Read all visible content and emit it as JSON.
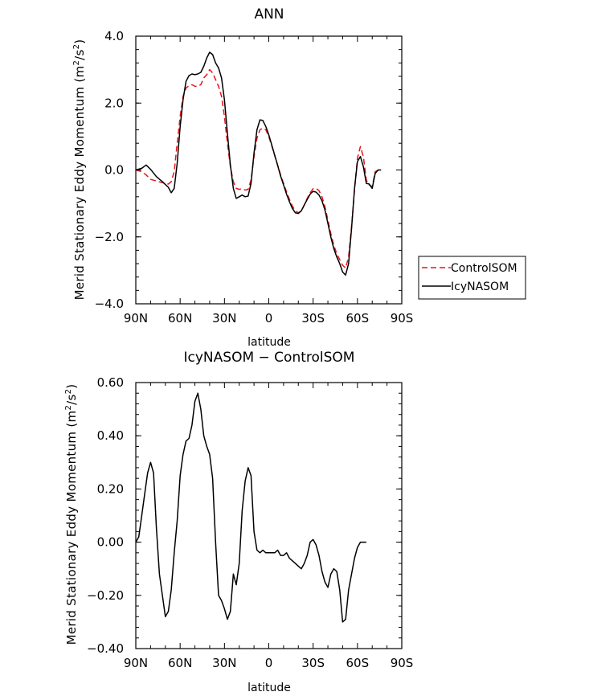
{
  "chart_data": [
    {
      "type": "line",
      "title": "ANN",
      "xlabel": "latitude",
      "ylabel": "Merid Stationary Eddy Momentum (m²/s²)",
      "ylabel_main": "Merid Stationary Eddy Momentum (m",
      "ylabel_sup1": "2",
      "ylabel_mid": "/s",
      "ylabel_sup2": "2",
      "ylabel_end": ")",
      "xlim": [
        90,
        -90
      ],
      "ylim": [
        -4.0,
        4.0
      ],
      "x_ticks": [
        90,
        60,
        30,
        0,
        -30,
        -60,
        -90
      ],
      "x_tick_labels": [
        "90N",
        "60N",
        "30N",
        "0",
        "30S",
        "60S",
        "90S"
      ],
      "y_ticks": [
        4.0,
        2.0,
        0.0,
        -2.0,
        -4.0
      ],
      "y_tick_labels": [
        "4.0",
        "2.0",
        "0.0",
        "−2.0",
        "−4.0"
      ],
      "legend": {
        "position": "right",
        "entries": [
          "ControlSOM",
          "IcyNASOM"
        ]
      },
      "series": [
        {
          "name": "ControlSOM",
          "color": "#e8141b",
          "dash": "dashed",
          "points": [
            [
              90,
              0.0
            ],
            [
              86,
              -0.05
            ],
            [
              83,
              -0.15
            ],
            [
              80,
              -0.28
            ],
            [
              76,
              -0.33
            ],
            [
              72,
              -0.38
            ],
            [
              68,
              -0.42
            ],
            [
              66,
              -0.35
            ],
            [
              64,
              -0.05
            ],
            [
              62,
              0.8
            ],
            [
              60,
              1.6
            ],
            [
              58,
              2.2
            ],
            [
              56,
              2.45
            ],
            [
              54,
              2.52
            ],
            [
              52,
              2.55
            ],
            [
              50,
              2.5
            ],
            [
              48,
              2.5
            ],
            [
              46,
              2.55
            ],
            [
              44,
              2.75
            ],
            [
              42,
              2.85
            ],
            [
              40,
              3.0
            ],
            [
              38,
              2.9
            ],
            [
              36,
              2.7
            ],
            [
              34,
              2.5
            ],
            [
              32,
              2.2
            ],
            [
              30,
              1.6
            ],
            [
              28,
              0.8
            ],
            [
              26,
              0.1
            ],
            [
              24,
              -0.35
            ],
            [
              22,
              -0.55
            ],
            [
              20,
              -0.58
            ],
            [
              18,
              -0.56
            ],
            [
              16,
              -0.6
            ],
            [
              14,
              -0.58
            ],
            [
              12,
              -0.3
            ],
            [
              10,
              0.4
            ],
            [
              8,
              0.95
            ],
            [
              6,
              1.2
            ],
            [
              4,
              1.25
            ],
            [
              2,
              1.2
            ],
            [
              0,
              1.0
            ],
            [
              -2,
              0.72
            ],
            [
              -4,
              0.42
            ],
            [
              -6,
              0.15
            ],
            [
              -8,
              -0.15
            ],
            [
              -10,
              -0.4
            ],
            [
              -12,
              -0.65
            ],
            [
              -14,
              -0.88
            ],
            [
              -16,
              -1.08
            ],
            [
              -18,
              -1.22
            ],
            [
              -20,
              -1.28
            ],
            [
              -22,
              -1.22
            ],
            [
              -24,
              -1.05
            ],
            [
              -26,
              -0.85
            ],
            [
              -28,
              -0.68
            ],
            [
              -30,
              -0.56
            ],
            [
              -32,
              -0.55
            ],
            [
              -34,
              -0.62
            ],
            [
              -36,
              -0.8
            ],
            [
              -38,
              -1.1
            ],
            [
              -40,
              -1.5
            ],
            [
              -42,
              -1.9
            ],
            [
              -44,
              -2.25
            ],
            [
              -46,
              -2.5
            ],
            [
              -48,
              -2.68
            ],
            [
              -50,
              -2.85
            ],
            [
              -52,
              -2.93
            ],
            [
              -54,
              -2.6
            ],
            [
              -56,
              -1.7
            ],
            [
              -58,
              -0.6
            ],
            [
              -60,
              0.35
            ],
            [
              -62,
              0.7
            ],
            [
              -64,
              0.4
            ],
            [
              -66,
              -0.3
            ],
            [
              -68,
              -0.45
            ],
            [
              -70,
              -0.5
            ],
            [
              -72,
              -0.05
            ],
            [
              -74,
              0.0
            ],
            [
              -76,
              0.0
            ]
          ]
        },
        {
          "name": "IcyNASOM",
          "color": "#000000",
          "dash": "solid",
          "points": [
            [
              90,
              0.0
            ],
            [
              86,
              0.05
            ],
            [
              83,
              0.15
            ],
            [
              80,
              0.02
            ],
            [
              76,
              -0.2
            ],
            [
              72,
              -0.35
            ],
            [
              68,
              -0.52
            ],
            [
              66,
              -0.68
            ],
            [
              64,
              -0.55
            ],
            [
              62,
              0.2
            ],
            [
              60,
              1.3
            ],
            [
              58,
              2.1
            ],
            [
              56,
              2.65
            ],
            [
              54,
              2.82
            ],
            [
              52,
              2.87
            ],
            [
              50,
              2.85
            ],
            [
              48,
              2.87
            ],
            [
              46,
              2.92
            ],
            [
              44,
              3.1
            ],
            [
              42,
              3.35
            ],
            [
              40,
              3.52
            ],
            [
              38,
              3.45
            ],
            [
              36,
              3.2
            ],
            [
              34,
              3.05
            ],
            [
              32,
              2.75
            ],
            [
              30,
              2.1
            ],
            [
              28,
              1.1
            ],
            [
              26,
              0.15
            ],
            [
              24,
              -0.55
            ],
            [
              22,
              -0.85
            ],
            [
              20,
              -0.8
            ],
            [
              18,
              -0.75
            ],
            [
              16,
              -0.8
            ],
            [
              14,
              -0.78
            ],
            [
              12,
              -0.4
            ],
            [
              10,
              0.5
            ],
            [
              8,
              1.2
            ],
            [
              6,
              1.5
            ],
            [
              4,
              1.48
            ],
            [
              2,
              1.3
            ],
            [
              0,
              1.05
            ],
            [
              -2,
              0.75
            ],
            [
              -4,
              0.44
            ],
            [
              -6,
              0.14
            ],
            [
              -8,
              -0.18
            ],
            [
              -10,
              -0.45
            ],
            [
              -12,
              -0.72
            ],
            [
              -14,
              -0.95
            ],
            [
              -16,
              -1.15
            ],
            [
              -18,
              -1.28
            ],
            [
              -20,
              -1.3
            ],
            [
              -22,
              -1.22
            ],
            [
              -24,
              -1.05
            ],
            [
              -26,
              -0.88
            ],
            [
              -28,
              -0.72
            ],
            [
              -30,
              -0.64
            ],
            [
              -32,
              -0.66
            ],
            [
              -34,
              -0.75
            ],
            [
              -36,
              -0.92
            ],
            [
              -38,
              -1.2
            ],
            [
              -40,
              -1.6
            ],
            [
              -42,
              -2.0
            ],
            [
              -44,
              -2.35
            ],
            [
              -46,
              -2.6
            ],
            [
              -48,
              -2.8
            ],
            [
              -50,
              -3.05
            ],
            [
              -52,
              -3.14
            ],
            [
              -54,
              -2.8
            ],
            [
              -56,
              -1.75
            ],
            [
              -58,
              -0.55
            ],
            [
              -60,
              0.25
            ],
            [
              -62,
              0.4
            ],
            [
              -64,
              0.1
            ],
            [
              -66,
              -0.4
            ],
            [
              -68,
              -0.42
            ],
            [
              -70,
              -0.55
            ],
            [
              -72,
              -0.1
            ],
            [
              -74,
              0.0
            ],
            [
              -76,
              0.0
            ]
          ]
        }
      ]
    },
    {
      "type": "line",
      "title": "IcyNASOM − ControlSOM",
      "xlabel": "latitude",
      "ylabel": "Merid Stationary Eddy Momentum (m²/s²)",
      "ylabel_main": "Merid Stationary Eddy Momentum (m",
      "ylabel_sup1": "2",
      "ylabel_mid": "/s",
      "ylabel_sup2": "2",
      "ylabel_end": ")",
      "xlim": [
        90,
        -90
      ],
      "ylim": [
        -0.4,
        0.6
      ],
      "x_ticks": [
        90,
        60,
        30,
        0,
        -30,
        -60,
        -90
      ],
      "x_tick_labels": [
        "90N",
        "60N",
        "30N",
        "0",
        "30S",
        "60S",
        "90S"
      ],
      "y_ticks": [
        0.6,
        0.4,
        0.2,
        0.0,
        -0.2,
        -0.4
      ],
      "y_tick_labels": [
        "0.60",
        "0.40",
        "0.20",
        "0.00",
        "−0.20",
        "−0.40"
      ],
      "series": [
        {
          "color": "#000000",
          "dash": "solid",
          "points": [
            [
              90,
              0.0
            ],
            [
              88,
              0.02
            ],
            [
              86,
              0.1
            ],
            [
              84,
              0.18
            ],
            [
              82,
              0.26
            ],
            [
              80,
              0.3
            ],
            [
              78,
              0.26
            ],
            [
              76,
              0.05
            ],
            [
              74,
              -0.12
            ],
            [
              72,
              -0.2
            ],
            [
              70,
              -0.28
            ],
            [
              68,
              -0.26
            ],
            [
              66,
              -0.18
            ],
            [
              64,
              -0.04
            ],
            [
              62,
              0.08
            ],
            [
              60,
              0.25
            ],
            [
              58,
              0.33
            ],
            [
              56,
              0.38
            ],
            [
              54,
              0.39
            ],
            [
              52,
              0.44
            ],
            [
              50,
              0.53
            ],
            [
              48,
              0.56
            ],
            [
              46,
              0.5
            ],
            [
              44,
              0.4
            ],
            [
              42,
              0.36
            ],
            [
              40,
              0.33
            ],
            [
              38,
              0.24
            ],
            [
              36,
              0.0
            ],
            [
              34,
              -0.2
            ],
            [
              32,
              -0.22
            ],
            [
              30,
              -0.25
            ],
            [
              28,
              -0.29
            ],
            [
              26,
              -0.26
            ],
            [
              24,
              -0.12
            ],
            [
              22,
              -0.16
            ],
            [
              20,
              -0.08
            ],
            [
              18,
              0.12
            ],
            [
              16,
              0.23
            ],
            [
              14,
              0.28
            ],
            [
              12,
              0.25
            ],
            [
              10,
              0.04
            ],
            [
              8,
              -0.03
            ],
            [
              6,
              -0.04
            ],
            [
              4,
              -0.03
            ],
            [
              2,
              -0.04
            ],
            [
              0,
              -0.04
            ],
            [
              -2,
              -0.04
            ],
            [
              -4,
              -0.04
            ],
            [
              -6,
              -0.03
            ],
            [
              -8,
              -0.05
            ],
            [
              -10,
              -0.05
            ],
            [
              -12,
              -0.04
            ],
            [
              -14,
              -0.06
            ],
            [
              -16,
              -0.07
            ],
            [
              -18,
              -0.08
            ],
            [
              -20,
              -0.09
            ],
            [
              -22,
              -0.1
            ],
            [
              -24,
              -0.08
            ],
            [
              -26,
              -0.05
            ],
            [
              -28,
              0.0
            ],
            [
              -30,
              0.01
            ],
            [
              -32,
              -0.01
            ],
            [
              -34,
              -0.05
            ],
            [
              -36,
              -0.11
            ],
            [
              -38,
              -0.15
            ],
            [
              -40,
              -0.17
            ],
            [
              -42,
              -0.12
            ],
            [
              -44,
              -0.1
            ],
            [
              -46,
              -0.11
            ],
            [
              -48,
              -0.18
            ],
            [
              -50,
              -0.3
            ],
            [
              -52,
              -0.29
            ],
            [
              -54,
              -0.18
            ],
            [
              -56,
              -0.12
            ],
            [
              -58,
              -0.06
            ],
            [
              -60,
              -0.02
            ],
            [
              -62,
              0.0
            ],
            [
              -64,
              0.0
            ],
            [
              -66,
              0.0
            ]
          ]
        }
      ]
    }
  ]
}
